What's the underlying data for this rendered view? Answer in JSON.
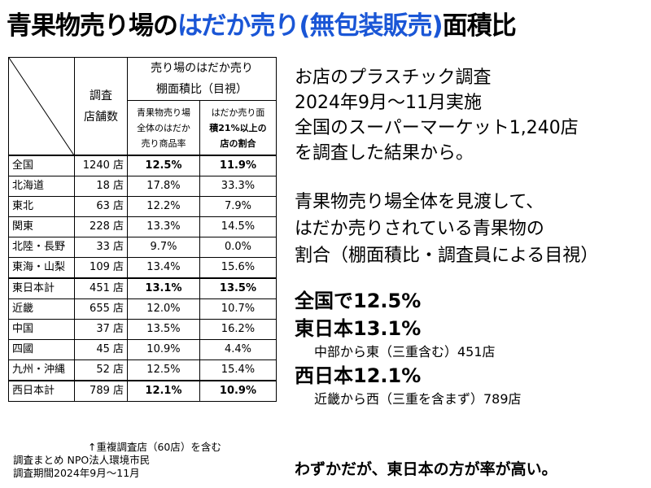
{
  "title": {
    "part1": "青果物売り場の",
    "part2": "はだか売り(無包装販売)",
    "part3": "面積比"
  },
  "colors": {
    "title_highlight": "#1a56d6"
  },
  "table": {
    "header_count": [
      "調査",
      "店舗数"
    ],
    "header_main": [
      "売り場のはだか売り",
      "棚面積比（目視）"
    ],
    "header_col1": [
      "青果物売り場",
      "全体のはだか",
      "売り商品率"
    ],
    "header_col2": [
      "はだか売り面",
      "積21%以上の",
      "店の割合"
    ],
    "rows": [
      {
        "region": "全国",
        "stores": "1240 店",
        "rate": "12.5%",
        "share": "11.9%",
        "bold": true
      },
      {
        "region": "北海道",
        "stores": "18 店",
        "rate": "17.8%",
        "share": "33.3%",
        "bold": false
      },
      {
        "region": "東北",
        "stores": "63 店",
        "rate": "12.2%",
        "share": "7.9%",
        "bold": false
      },
      {
        "region": "関東",
        "stores": "228 店",
        "rate": "13.3%",
        "share": "14.5%",
        "bold": false
      },
      {
        "region": "北陸・長野",
        "stores": "33 店",
        "rate": "9.7%",
        "share": "0.0%",
        "bold": false
      },
      {
        "region": "東海・山梨",
        "stores": "109 店",
        "rate": "13.4%",
        "share": "15.6%",
        "bold": false
      },
      {
        "region": "東日本計",
        "stores": "451 店",
        "rate": "13.1%",
        "share": "13.5%",
        "bold": true
      },
      {
        "region": "近畿",
        "stores": "655 店",
        "rate": "12.0%",
        "share": "10.7%",
        "bold": false
      },
      {
        "region": "中国",
        "stores": "37 店",
        "rate": "13.5%",
        "share": "16.2%",
        "bold": false
      },
      {
        "region": "四國",
        "stores": "45 店",
        "rate": "10.9%",
        "share": "4.4%",
        "bold": false
      },
      {
        "region": "九州・沖縄",
        "stores": "52 店",
        "rate": "12.5%",
        "share": "15.4%",
        "bold": false
      },
      {
        "region": "西日本計",
        "stores": "789 店",
        "rate": "12.1%",
        "share": "10.9%",
        "bold": true
      }
    ]
  },
  "notes": {
    "arrow_note": "↑重複調査店（60店）を含む",
    "org": "調査まとめ NPO法人環境市民",
    "period": "調査期間2024年9月〜11月"
  },
  "right": {
    "intro": [
      "お店のプラスチック調査",
      "2024年9月〜11月実施",
      "全国のスーパーマーケット1,240店",
      "を調査した結果から。"
    ],
    "desc": [
      "青果物売り場全体を見渡して、",
      "はだか売りされている青果物の",
      "割合（棚面積比・調査員による目視）"
    ],
    "nation": "全国で12.5%",
    "east": "東日本13.1%",
    "east_note": "中部から東（三重含む）451店",
    "west": "西日本12.1%",
    "west_note": "近畿から西（三重を含まず）789店",
    "conclusion": "わずかだが、東日本の方が率が高い。"
  }
}
